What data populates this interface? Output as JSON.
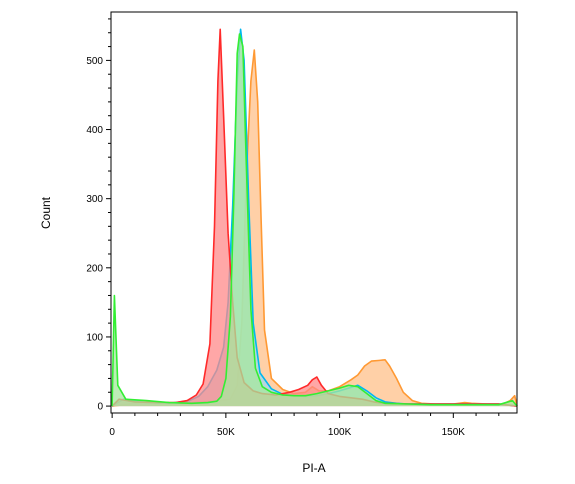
{
  "chart_data": {
    "type": "area",
    "xlabel": "PI-A",
    "ylabel": "Count",
    "xlim": [
      -500,
      178000
    ],
    "ylim": [
      -10,
      570
    ],
    "x_ticks": [
      {
        "value": 0,
        "label": "0"
      },
      {
        "value": 50000,
        "label": "50K"
      },
      {
        "value": 100000,
        "label": "100K"
      },
      {
        "value": 150000,
        "label": "150K"
      }
    ],
    "y_ticks": [
      {
        "value": 0,
        "label": "0"
      },
      {
        "value": 100,
        "label": "100"
      },
      {
        "value": 200,
        "label": "200"
      },
      {
        "value": 300,
        "label": "300"
      },
      {
        "value": 400,
        "label": "400"
      },
      {
        "value": 500,
        "label": "500"
      }
    ],
    "grid": false,
    "series": [
      {
        "color": "#ff9933",
        "fill": "#ffc08a",
        "points": [
          [
            0,
            0
          ],
          [
            15000,
            6
          ],
          [
            30000,
            4
          ],
          [
            40000,
            6
          ],
          [
            46000,
            7
          ],
          [
            52000,
            10
          ],
          [
            55000,
            30
          ],
          [
            57000,
            120
          ],
          [
            59000,
            330
          ],
          [
            61000,
            470
          ],
          [
            62500,
            515
          ],
          [
            64000,
            440
          ],
          [
            65500,
            270
          ],
          [
            67000,
            110
          ],
          [
            70000,
            40
          ],
          [
            75000,
            24
          ],
          [
            80000,
            18
          ],
          [
            85000,
            20
          ],
          [
            88000,
            28
          ],
          [
            91000,
            22
          ],
          [
            95000,
            22
          ],
          [
            100000,
            28
          ],
          [
            105000,
            38
          ],
          [
            108000,
            45
          ],
          [
            111000,
            58
          ],
          [
            114000,
            65
          ],
          [
            117000,
            66
          ],
          [
            120000,
            67
          ],
          [
            122000,
            58
          ],
          [
            125000,
            40
          ],
          [
            128000,
            20
          ],
          [
            132000,
            8
          ],
          [
            136000,
            4
          ],
          [
            142000,
            3
          ],
          [
            150000,
            3
          ],
          [
            155000,
            5
          ],
          [
            158000,
            4
          ],
          [
            165000,
            3
          ],
          [
            172000,
            3
          ],
          [
            175000,
            8
          ],
          [
            177000,
            15
          ],
          [
            178000,
            0
          ]
        ]
      },
      {
        "color": "#00b8f0",
        "fill": "#9fd8f0",
        "points": [
          [
            0,
            0
          ],
          [
            5000,
            10
          ],
          [
            15000,
            5
          ],
          [
            25000,
            4
          ],
          [
            30000,
            6
          ],
          [
            34000,
            8
          ],
          [
            38000,
            14
          ],
          [
            42000,
            28
          ],
          [
            46000,
            52
          ],
          [
            49000,
            85
          ],
          [
            51000,
            150
          ],
          [
            53000,
            290
          ],
          [
            55000,
            470
          ],
          [
            56500,
            545
          ],
          [
            58000,
            500
          ],
          [
            60000,
            300
          ],
          [
            62000,
            120
          ],
          [
            65000,
            48
          ],
          [
            70000,
            25
          ],
          [
            75000,
            17
          ],
          [
            80000,
            15
          ],
          [
            85000,
            14
          ],
          [
            90000,
            15
          ],
          [
            95000,
            18
          ],
          [
            100000,
            22
          ],
          [
            105000,
            27
          ],
          [
            108000,
            30
          ],
          [
            112000,
            22
          ],
          [
            116000,
            12
          ],
          [
            120000,
            6
          ],
          [
            125000,
            4
          ],
          [
            130000,
            3
          ],
          [
            140000,
            3
          ],
          [
            150000,
            3
          ],
          [
            160000,
            3
          ],
          [
            170000,
            3
          ],
          [
            178000,
            0
          ]
        ]
      },
      {
        "color": "#ff2a2a",
        "fill": "#ff8a8a",
        "points": [
          [
            0,
            0
          ],
          [
            3000,
            10
          ],
          [
            10000,
            6
          ],
          [
            20000,
            5
          ],
          [
            28000,
            5
          ],
          [
            33000,
            8
          ],
          [
            37000,
            16
          ],
          [
            40000,
            32
          ],
          [
            43000,
            90
          ],
          [
            45000,
            260
          ],
          [
            46500,
            470
          ],
          [
            47500,
            545
          ],
          [
            49000,
            420
          ],
          [
            51000,
            250
          ],
          [
            53000,
            150
          ],
          [
            55000,
            70
          ],
          [
            58000,
            34
          ],
          [
            62000,
            22
          ],
          [
            66000,
            18
          ],
          [
            72000,
            16
          ],
          [
            78000,
            20
          ],
          [
            82000,
            24
          ],
          [
            86000,
            30
          ],
          [
            88000,
            38
          ],
          [
            90000,
            42
          ],
          [
            92000,
            30
          ],
          [
            95000,
            18
          ],
          [
            100000,
            14
          ],
          [
            105000,
            12
          ],
          [
            110000,
            10
          ],
          [
            115000,
            6
          ],
          [
            120000,
            4
          ],
          [
            130000,
            3
          ],
          [
            140000,
            3
          ],
          [
            150000,
            3
          ],
          [
            160000,
            3
          ],
          [
            170000,
            3
          ],
          [
            178000,
            0
          ]
        ]
      },
      {
        "color": "#33ee33",
        "fill": "#a6e89e",
        "points": [
          [
            0,
            0
          ],
          [
            1000,
            160
          ],
          [
            2500,
            30
          ],
          [
            6000,
            10
          ],
          [
            15000,
            8
          ],
          [
            25000,
            5
          ],
          [
            35000,
            4
          ],
          [
            42000,
            5
          ],
          [
            46000,
            7
          ],
          [
            48000,
            14
          ],
          [
            50000,
            40
          ],
          [
            52000,
            130
          ],
          [
            53500,
            300
          ],
          [
            55000,
            510
          ],
          [
            56000,
            538
          ],
          [
            57500,
            520
          ],
          [
            59000,
            350
          ],
          [
            61000,
            140
          ],
          [
            63000,
            55
          ],
          [
            66000,
            28
          ],
          [
            70000,
            20
          ],
          [
            75000,
            16
          ],
          [
            80000,
            15
          ],
          [
            85000,
            15
          ],
          [
            90000,
            18
          ],
          [
            95000,
            22
          ],
          [
            100000,
            26
          ],
          [
            104000,
            30
          ],
          [
            108000,
            28
          ],
          [
            112000,
            18
          ],
          [
            116000,
            8
          ],
          [
            120000,
            4
          ],
          [
            130000,
            3
          ],
          [
            140000,
            2
          ],
          [
            150000,
            2
          ],
          [
            160000,
            2
          ],
          [
            170000,
            2
          ],
          [
            176000,
            8
          ],
          [
            178000,
            0
          ]
        ]
      }
    ]
  }
}
